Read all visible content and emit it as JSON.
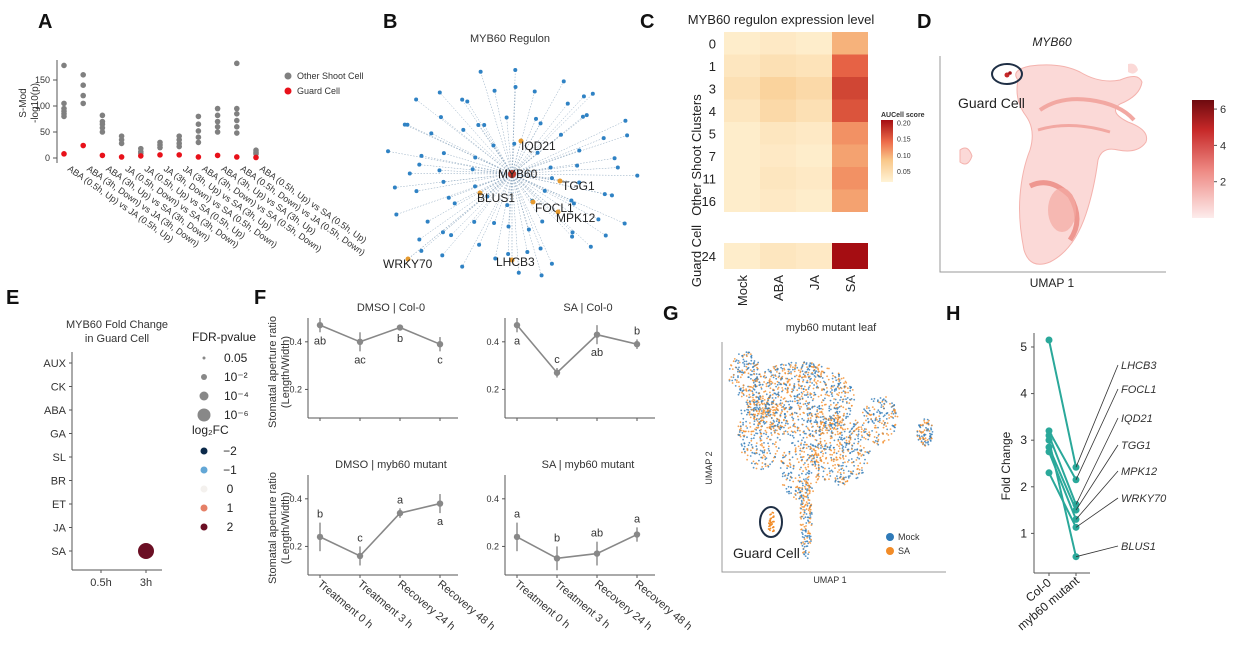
{
  "panel_labels": [
    "A",
    "B",
    "C",
    "D",
    "E",
    "F",
    "G",
    "H"
  ],
  "panelA": {
    "ylabel_line1": "S-Mod",
    "ylabel_line2": "-log10(p)",
    "yticks": [
      "0",
      "50",
      "100",
      "150"
    ],
    "legend": [
      "Other Shoot Cell",
      "Guard Cell"
    ],
    "colors": {
      "other": "#808080",
      "guard": "#e8111a"
    },
    "categories": [
      "ABA (0.5h, Up) vs JA (0.5h, Up)",
      "ABA (3h, Down) vs JA (3h, Down)",
      "ABA (3h, Up) vs SA (3h, Down)",
      "JA (0.5h, Down) vs SA (3h, Down)",
      "JA (0.5h, Up) vs SA (0.5h, Up)",
      "JA (3h, Down) vs SA (0.5h, Down)",
      "JA (3h, Up) vs SA (3h, Up)",
      "ABA (3h, Down) vs SA (0.5h, Down)",
      "ABA (3h, Up) vs SA (3h, Up)",
      "ABA (0.5h, Down) vs JA (0.5h, Down)",
      "ABA (0.5h, Up) vs SA (0.5h, Up)"
    ],
    "other": [
      [
        178,
        105,
        95,
        90,
        85,
        80
      ],
      [
        160,
        140,
        120,
        105
      ],
      [
        82,
        70,
        65,
        58,
        50
      ],
      [
        42,
        35,
        28
      ],
      [
        18,
        12,
        9
      ],
      [
        30,
        25,
        20
      ],
      [
        42,
        35,
        28,
        22
      ],
      [
        80,
        65,
        52,
        40,
        30
      ],
      [
        95,
        82,
        70,
        60,
        50
      ],
      [
        182,
        95,
        85,
        72,
        60,
        48
      ],
      [
        15,
        11,
        8
      ]
    ],
    "guard": [
      8,
      24,
      5,
      2,
      4,
      6,
      6,
      2,
      5,
      2,
      1
    ]
  },
  "panelB": {
    "title": "MYB60 Regulon",
    "center": "MYB60",
    "genes": [
      "IQD21",
      "TGG1",
      "BLUS1",
      "FOCL1",
      "MPK12",
      "LHCB3",
      "WRKY70"
    ]
  },
  "panelC": {
    "title": "MYB60 regulon expression level",
    "rows_other": [
      "0",
      "1",
      "3",
      "4",
      "5",
      "7",
      "11",
      "16"
    ],
    "rows_guard": [
      "24"
    ],
    "cols": [
      "Mock",
      "ABA",
      "JA",
      "SA"
    ],
    "group_other": "Other Shoot Clusters",
    "group_guard": "Guard Cell",
    "values": [
      [
        0.03,
        0.035,
        0.03,
        0.1
      ],
      [
        0.04,
        0.05,
        0.045,
        0.15
      ],
      [
        0.05,
        0.07,
        0.06,
        0.17
      ],
      [
        0.04,
        0.06,
        0.05,
        0.16
      ],
      [
        0.03,
        0.04,
        0.035,
        0.12
      ],
      [
        0.03,
        0.035,
        0.03,
        0.11
      ],
      [
        0.03,
        0.04,
        0.035,
        0.12
      ],
      [
        0.03,
        0.035,
        0.03,
        0.11
      ],
      [
        0.03,
        0.04,
        0.035,
        0.22
      ]
    ],
    "colorbar_label": "AUCell score",
    "colorbar_ticks": [
      "0.20",
      "0.15",
      "0.10",
      "0.05"
    ],
    "colorbar_tick_values": [
      0.2,
      0.15,
      0.1,
      0.05
    ],
    "range": [
      0.02,
      0.21
    ]
  },
  "panelD": {
    "title": "MYB60",
    "annotation": "Guard Cell",
    "xlabel": "UMAP 1",
    "colorbar_ticks": [
      "6",
      "4",
      "2"
    ],
    "colorbar_tick_values": [
      6,
      4,
      2
    ],
    "range": [
      0,
      6.5
    ]
  },
  "panelE": {
    "title_line1": "MYB60 Fold Change",
    "title_line2": "in Guard Cell",
    "rows": [
      "AUX",
      "CK",
      "ABA",
      "GA",
      "SL",
      "BR",
      "ET",
      "JA",
      "SA"
    ],
    "cols": [
      "0.5h",
      "3h"
    ],
    "point": {
      "row": "SA",
      "col": "3h",
      "log2fc": 2
    },
    "size_legend_title": "FDR-pvalue",
    "size_legend": [
      "0.05",
      "10⁻²",
      "10⁻⁴",
      "10⁻⁶"
    ],
    "color_legend_title": "log₂FC",
    "color_legend": [
      {
        "label": "−2",
        "color": "#0b2a4a"
      },
      {
        "label": "−1",
        "color": "#63a7d6"
      },
      {
        "label": "0",
        "color": "#f4f1ee"
      },
      {
        "label": "1",
        "color": "#e58067"
      },
      {
        "label": "2",
        "color": "#6b0f24"
      }
    ]
  },
  "panelF": {
    "ylabel_line1": "Stomatal aperture ratio",
    "ylabel_line2": "(Length/Width)",
    "yticks": [
      "0.2",
      "0.4"
    ],
    "xcats": [
      "Treatment 0 h",
      "Treatment 3 h",
      "Recovery 24 h",
      "Recovery 48 h"
    ],
    "subplots": [
      {
        "title": "DMSO | Col-0",
        "values": [
          0.47,
          0.4,
          0.46,
          0.39
        ],
        "err": [
          0.03,
          0.04,
          0.01,
          0.03
        ],
        "letters": [
          "ab",
          "ac",
          "b",
          "c"
        ],
        "letter_pos": [
          "below",
          "below",
          "below",
          "below"
        ]
      },
      {
        "title": "SA | Col-0",
        "values": [
          0.47,
          0.27,
          0.43,
          0.39
        ],
        "err": [
          0.03,
          0.02,
          0.04,
          0.02
        ],
        "letters": [
          "a",
          "c",
          "ab",
          "b"
        ],
        "letter_pos": [
          "below",
          "above",
          "below",
          "above"
        ]
      },
      {
        "title": "DMSO | myb60 mutant",
        "values": [
          0.24,
          0.16,
          0.34,
          0.38
        ],
        "err": [
          0.06,
          0.04,
          0.02,
          0.04
        ],
        "letters": [
          "b",
          "c",
          "a",
          "a"
        ],
        "letter_pos": [
          "above",
          "above",
          "above",
          "below"
        ]
      },
      {
        "title": "SA | myb60 mutant",
        "values": [
          0.24,
          0.15,
          0.17,
          0.25
        ],
        "err": [
          0.06,
          0.05,
          0.05,
          0.03
        ],
        "letters": [
          "a",
          "b",
          "ab",
          "a"
        ],
        "letter_pos": [
          "above",
          "above",
          "above",
          "above"
        ]
      }
    ]
  },
  "panelG": {
    "title": "myb60 mutant leaf",
    "annotation": "Guard Cell",
    "xlabel": "UMAP 1",
    "ylabel": "UMAP 2",
    "legend": [
      {
        "label": "Mock",
        "color": "#2f7ab8"
      },
      {
        "label": "SA",
        "color": "#f28c28"
      }
    ]
  },
  "panelH": {
    "ylabel": "Fold Change",
    "yticks": [
      "1",
      "2",
      "3",
      "4",
      "5"
    ],
    "xcats": [
      "Col-0",
      "myb60 mutant"
    ],
    "color": "#2aa89a",
    "pairs": [
      {
        "gene": "LHCB3",
        "col0": 5.15,
        "mut": 2.42
      },
      {
        "gene": "FOCL1",
        "col0": 3.2,
        "mut": 2.15
      },
      {
        "gene": "IQD21",
        "col0": 3.1,
        "mut": 1.62
      },
      {
        "gene": "TGG1",
        "col0": 2.85,
        "mut": 1.5
      },
      {
        "gene": "MPK12",
        "col0": 2.75,
        "mut": 1.3
      },
      {
        "gene": "WRKY70",
        "col0": 2.3,
        "mut": 1.13
      },
      {
        "gene": "BLUS1",
        "col0": 3.0,
        "mut": 0.5
      }
    ]
  }
}
